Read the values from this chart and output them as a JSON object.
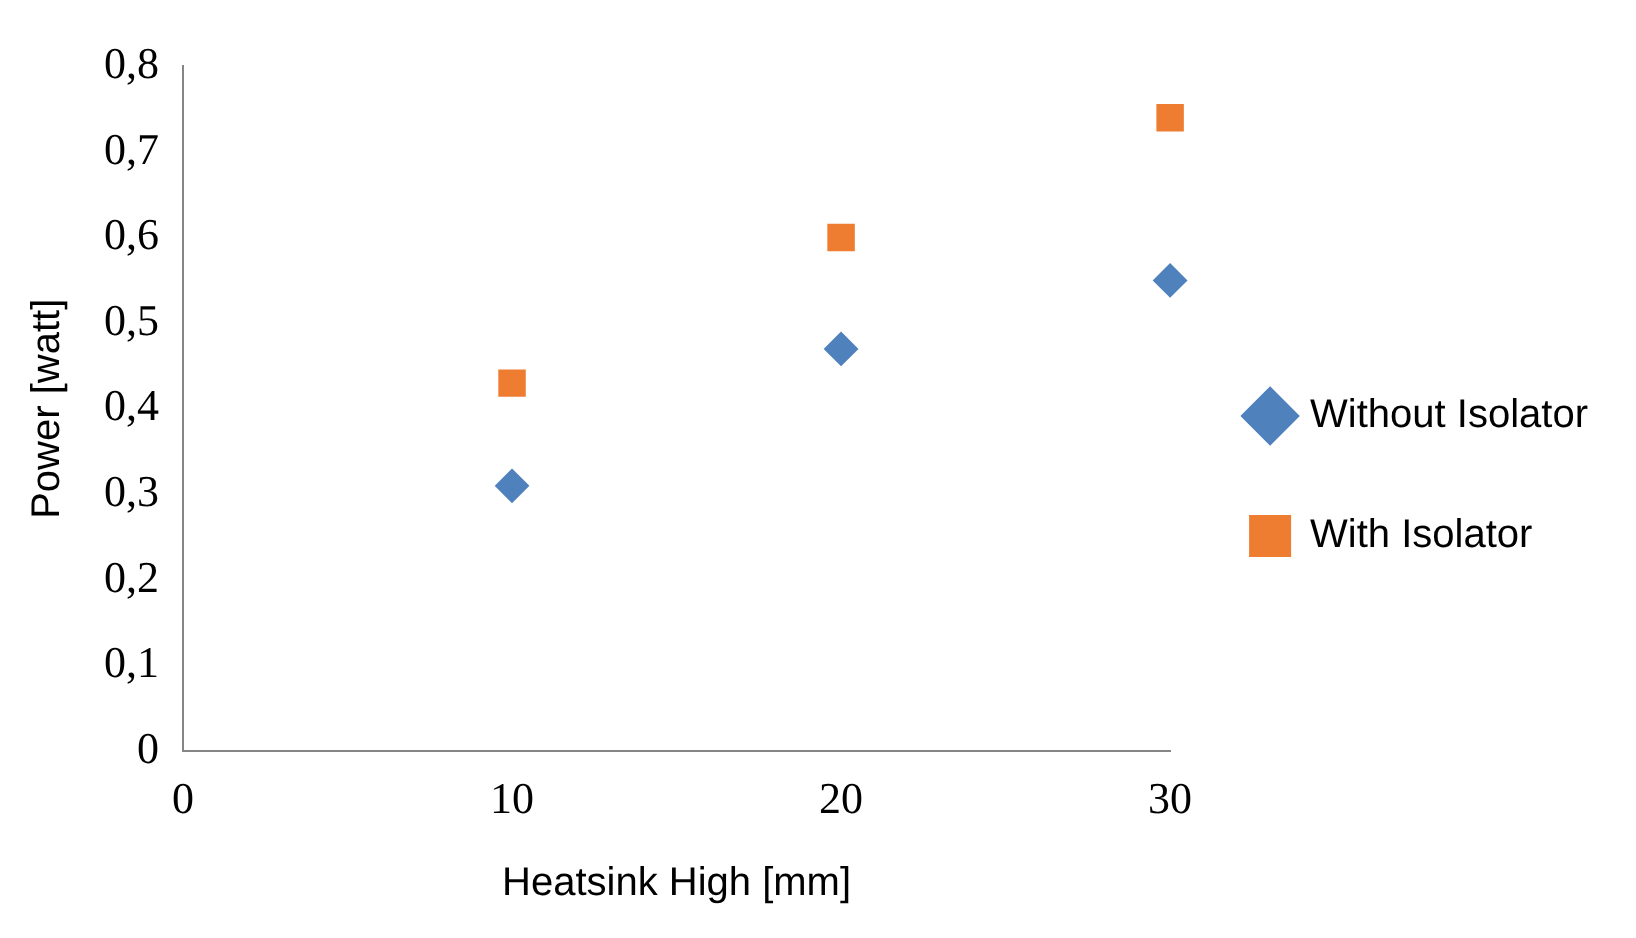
{
  "chart_data": {
    "type": "scatter",
    "xlabel": "Heatsink High [mm]",
    "ylabel": "Power [watt]",
    "x": [
      10,
      20,
      30
    ],
    "series": [
      {
        "name": "Without Isolator",
        "color": "#4f81bd",
        "marker": "diamond",
        "values": [
          0.31,
          0.47,
          0.55
        ]
      },
      {
        "name": "With Isolator",
        "color": "#ee7d31",
        "marker": "square",
        "values": [
          0.43,
          0.6,
          0.74
        ]
      }
    ],
    "xlim": [
      0,
      30
    ],
    "xticks": [
      0,
      10,
      20,
      30
    ],
    "ylim": [
      0,
      0.8
    ],
    "yticks": [
      0,
      {
        "value": 0.1,
        "label": "0,1"
      },
      {
        "value": 0.2,
        "label": "0,2"
      },
      {
        "value": 0.3,
        "label": "0,3"
      },
      {
        "value": 0.4,
        "label": "0,4"
      },
      {
        "value": 0.5,
        "label": "0,5"
      },
      {
        "value": 0.6,
        "label": "0,6"
      },
      {
        "value": 0.7,
        "label": "0,7"
      },
      {
        "value": 0.8,
        "label": "0,8"
      }
    ],
    "grid": false,
    "legend": "right"
  }
}
